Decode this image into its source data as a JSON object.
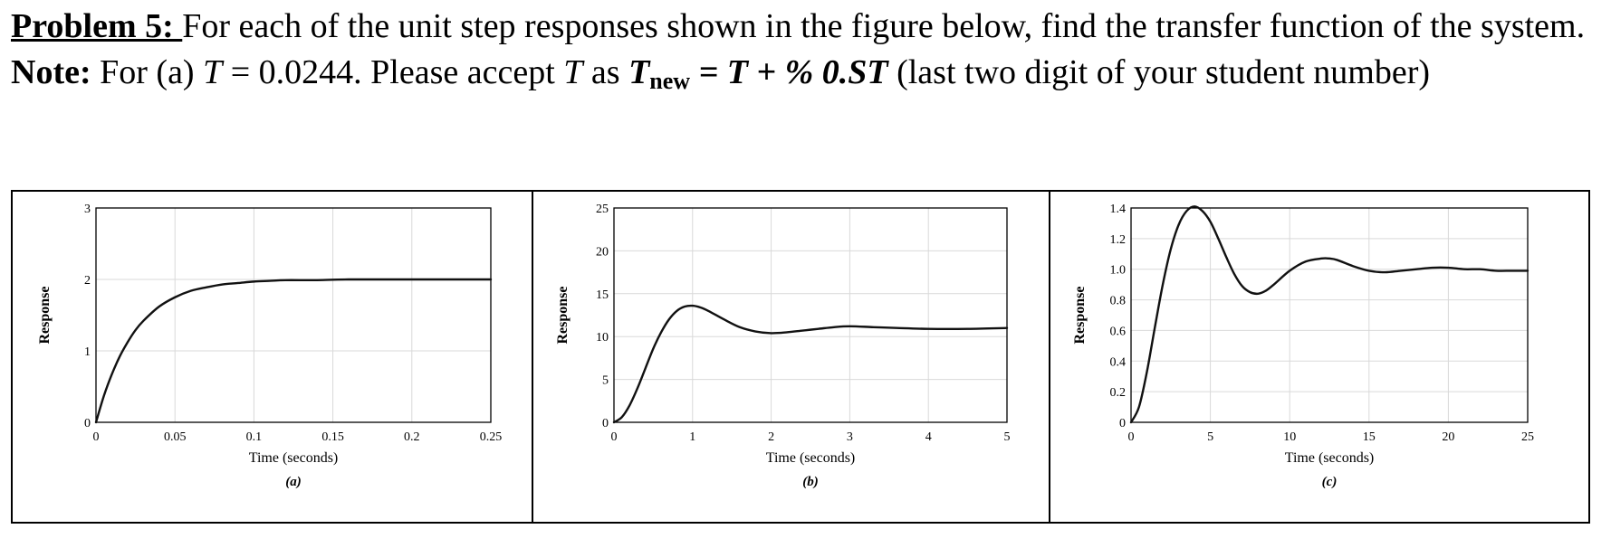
{
  "problem": {
    "lead": "Problem 5: ",
    "text1": "For each of the unit step responses shown in the figure below, find the transfer function of the system. ",
    "note_label": "Note:",
    "text2": " For (a) ",
    "t_symbol": "T",
    "t_value": " = 0.0244. Please accept ",
    "t_symbol2": "T",
    "as_text": " as ",
    "t_new": "T",
    "t_new_sub": "new",
    "formula": " = T + % 0.ST",
    "text3": " (last two digit of your student number)"
  },
  "chart_data": [
    {
      "type": "line",
      "caption": "(a)",
      "xlabel": "Time (seconds)",
      "ylabel": "Response",
      "xlim": [
        0,
        0.25
      ],
      "ylim": [
        0,
        3
      ],
      "xticks": [
        0,
        0.05,
        0.1,
        0.15,
        0.2,
        0.25
      ],
      "xtick_labels": [
        "0",
        "0.05",
        "0.1",
        "0.15",
        "0.2",
        "0.25"
      ],
      "yticks": [
        0,
        1,
        2,
        3
      ],
      "ytick_labels": [
        "0",
        "1",
        "2",
        "3"
      ],
      "grid": true,
      "series": [
        {
          "x": [
            0,
            0.005,
            0.01,
            0.015,
            0.02,
            0.025,
            0.03,
            0.04,
            0.05,
            0.06,
            0.07,
            0.08,
            0.09,
            0.1,
            0.11,
            0.12,
            0.14,
            0.16,
            0.2,
            0.25
          ],
          "y": [
            0,
            0.37,
            0.67,
            0.92,
            1.12,
            1.29,
            1.42,
            1.62,
            1.75,
            1.84,
            1.89,
            1.93,
            1.95,
            1.97,
            1.98,
            1.99,
            1.99,
            2.0,
            2.0,
            2.0
          ]
        }
      ]
    },
    {
      "type": "line",
      "caption": "(b)",
      "xlabel": "Time (seconds)",
      "ylabel": "Response",
      "xlim": [
        0,
        5
      ],
      "ylim": [
        0,
        25
      ],
      "xticks": [
        0,
        1,
        2,
        3,
        4,
        5
      ],
      "xtick_labels": [
        "0",
        "1",
        "2",
        "3",
        "4",
        "5"
      ],
      "yticks": [
        0,
        5,
        10,
        15,
        20,
        25
      ],
      "ytick_labels": [
        "0",
        "5",
        "10",
        "15",
        "20",
        "25"
      ],
      "grid": true,
      "series": [
        {
          "x": [
            0,
            0.1,
            0.2,
            0.3,
            0.4,
            0.5,
            0.6,
            0.7,
            0.8,
            0.9,
            1.0,
            1.1,
            1.2,
            1.4,
            1.6,
            1.8,
            2.0,
            2.2,
            2.4,
            2.6,
            2.8,
            3.0,
            3.3,
            3.6,
            4.0,
            4.5,
            5.0
          ],
          "y": [
            0,
            0.6,
            2.0,
            4.0,
            6.3,
            8.6,
            10.5,
            12.0,
            13.0,
            13.5,
            13.6,
            13.4,
            13.0,
            12.0,
            11.1,
            10.6,
            10.4,
            10.5,
            10.7,
            10.9,
            11.1,
            11.2,
            11.1,
            11.0,
            10.9,
            10.9,
            11.0
          ]
        }
      ]
    },
    {
      "type": "line",
      "caption": "(c)",
      "xlabel": "Time (seconds)",
      "ylabel": "Response",
      "xlim": [
        0,
        25
      ],
      "ylim": [
        0,
        1.4
      ],
      "xticks": [
        0,
        5,
        10,
        15,
        20,
        25
      ],
      "xtick_labels": [
        "0",
        "5",
        "10",
        "15",
        "20",
        "25"
      ],
      "yticks": [
        0,
        0.2,
        0.4,
        0.6,
        0.8,
        1.0,
        1.2,
        1.4
      ],
      "ytick_labels": [
        "0",
        "0.2",
        "0.4",
        "0.6",
        "0.8",
        "1.0",
        "1.2",
        "1.4"
      ],
      "grid": true,
      "series": [
        {
          "x": [
            0,
            0.5,
            1,
            1.5,
            2,
            2.5,
            3,
            3.5,
            4,
            4.5,
            5,
            5.5,
            6,
            6.5,
            7,
            7.5,
            8,
            8.5,
            9,
            10,
            11,
            12,
            12.5,
            13,
            14,
            15,
            16,
            17,
            18,
            19,
            20,
            21,
            22,
            23,
            24,
            25
          ],
          "y": [
            0,
            0.1,
            0.33,
            0.62,
            0.9,
            1.13,
            1.29,
            1.38,
            1.41,
            1.38,
            1.31,
            1.2,
            1.08,
            0.97,
            0.89,
            0.85,
            0.84,
            0.86,
            0.9,
            0.99,
            1.05,
            1.07,
            1.07,
            1.06,
            1.02,
            0.99,
            0.98,
            0.99,
            1.0,
            1.01,
            1.01,
            1.0,
            1.0,
            0.99,
            0.99,
            0.99
          ]
        }
      ]
    }
  ]
}
